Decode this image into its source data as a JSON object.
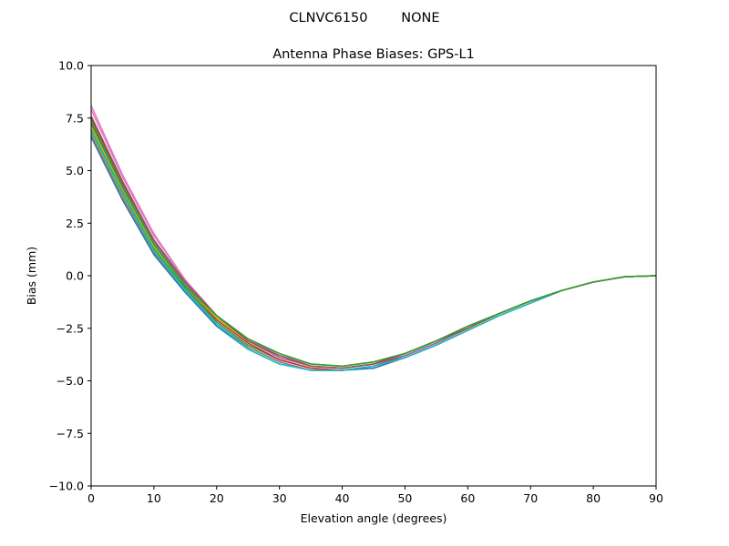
{
  "figure": {
    "suptitle": "CLNVC6150        NONE"
  },
  "chart_data": {
    "type": "line",
    "title": "Antenna Phase Biases: GPS-L1",
    "xlabel": "Elevation angle (degrees)",
    "ylabel": "Bias (mm)",
    "xlim": [
      0,
      90
    ],
    "ylim": [
      -10,
      10
    ],
    "xticks": [
      0,
      10,
      20,
      30,
      40,
      50,
      60,
      70,
      80,
      90
    ],
    "xtick_labels": [
      "0",
      "10",
      "20",
      "30",
      "40",
      "50",
      "60",
      "70",
      "80",
      "90"
    ],
    "yticks": [
      -10,
      -7.5,
      -5,
      -2.5,
      0,
      2.5,
      5,
      7.5,
      10
    ],
    "ytick_labels": [
      "−10.0",
      "−7.5",
      "−5.0",
      "−2.5",
      "0.0",
      "2.5",
      "5.0",
      "7.5",
      "10.0"
    ],
    "grid": false,
    "legend": "none",
    "x": [
      0,
      5,
      10,
      15,
      20,
      25,
      30,
      35,
      40,
      45,
      50,
      55,
      60,
      65,
      70,
      75,
      80,
      85,
      90
    ],
    "series": [
      {
        "color": "#1f77b4",
        "values": [
          6.6,
          3.6,
          1.0,
          -0.8,
          -2.4,
          -3.5,
          -4.2,
          -4.5,
          -4.5,
          -4.4,
          -3.9,
          -3.3,
          -2.6,
          -1.9,
          -1.3,
          -0.7,
          -0.3,
          -0.05,
          0
        ]
      },
      {
        "color": "#ff7f0e",
        "values": [
          6.8,
          3.8,
          1.2,
          -0.7,
          -2.3,
          -3.4,
          -4.1,
          -4.5,
          -4.5,
          -4.3,
          -3.9,
          -3.3,
          -2.6,
          -1.9,
          -1.3,
          -0.7,
          -0.3,
          -0.05,
          0
        ]
      },
      {
        "color": "#2ca02c",
        "values": [
          7.0,
          4.0,
          1.3,
          -0.6,
          -2.2,
          -3.3,
          -4.0,
          -4.4,
          -4.5,
          -4.3,
          -3.8,
          -3.2,
          -2.5,
          -1.8,
          -1.2,
          -0.7,
          -0.3,
          -0.05,
          0
        ]
      },
      {
        "color": "#d62728",
        "values": [
          7.2,
          4.2,
          1.5,
          -0.5,
          -2.1,
          -3.2,
          -4.0,
          -4.4,
          -4.5,
          -4.3,
          -3.8,
          -3.2,
          -2.5,
          -1.8,
          -1.2,
          -0.7,
          -0.3,
          -0.05,
          0
        ]
      },
      {
        "color": "#9467bd",
        "values": [
          7.4,
          4.3,
          1.6,
          -0.4,
          -2.0,
          -3.1,
          -3.9,
          -4.3,
          -4.4,
          -4.2,
          -3.8,
          -3.2,
          -2.5,
          -1.8,
          -1.2,
          -0.7,
          -0.3,
          -0.05,
          0
        ]
      },
      {
        "color": "#8c564b",
        "values": [
          7.6,
          4.5,
          1.7,
          -0.3,
          -1.9,
          -3.1,
          -3.8,
          -4.3,
          -4.4,
          -4.2,
          -3.7,
          -3.1,
          -2.5,
          -1.8,
          -1.2,
          -0.7,
          -0.3,
          -0.05,
          0
        ]
      },
      {
        "color": "#e377c2",
        "values": [
          8.1,
          4.8,
          2.0,
          -0.2,
          -1.9,
          -3.0,
          -3.7,
          -4.2,
          -4.3,
          -4.1,
          -3.7,
          -3.1,
          -2.4,
          -1.8,
          -1.2,
          -0.7,
          -0.3,
          -0.05,
          0
        ]
      },
      {
        "color": "#7f7f7f",
        "values": [
          6.7,
          3.7,
          1.1,
          -0.7,
          -2.3,
          -3.4,
          -4.1,
          -4.5,
          -4.5,
          -4.3,
          -3.9,
          -3.3,
          -2.6,
          -1.9,
          -1.3,
          -0.7,
          -0.3,
          -0.05,
          0
        ]
      },
      {
        "color": "#bcbd22",
        "values": [
          7.1,
          4.1,
          1.4,
          -0.5,
          -2.0,
          -3.1,
          -3.8,
          -4.2,
          -4.3,
          -4.1,
          -3.7,
          -3.1,
          -2.5,
          -1.8,
          -1.2,
          -0.7,
          -0.3,
          -0.05,
          0
        ]
      },
      {
        "color": "#17becf",
        "values": [
          6.9,
          3.9,
          1.2,
          -0.7,
          -2.3,
          -3.5,
          -4.2,
          -4.5,
          -4.5,
          -4.3,
          -3.9,
          -3.3,
          -2.6,
          -1.9,
          -1.3,
          -0.7,
          -0.3,
          -0.05,
          0
        ]
      },
      {
        "color": "#e377c2",
        "values": [
          7.9,
          4.7,
          1.9,
          -0.2,
          -1.9,
          -3.0,
          -3.8,
          -4.2,
          -4.3,
          -4.1,
          -3.7,
          -3.1,
          -2.4,
          -1.8,
          -1.2,
          -0.7,
          -0.3,
          -0.05,
          0
        ]
      },
      {
        "color": "#8c564b",
        "values": [
          7.5,
          4.4,
          1.7,
          -0.3,
          -1.9,
          -3.1,
          -3.8,
          -4.3,
          -4.4,
          -4.2,
          -3.7,
          -3.1,
          -2.5,
          -1.8,
          -1.2,
          -0.7,
          -0.3,
          -0.05,
          0
        ]
      },
      {
        "color": "#2ca02c",
        "values": [
          7.3,
          4.2,
          1.5,
          -0.5,
          -1.9,
          -3.0,
          -3.7,
          -4.2,
          -4.3,
          -4.1,
          -3.7,
          -3.1,
          -2.4,
          -1.8,
          -1.2,
          -0.7,
          -0.3,
          -0.05,
          0
        ]
      }
    ]
  }
}
